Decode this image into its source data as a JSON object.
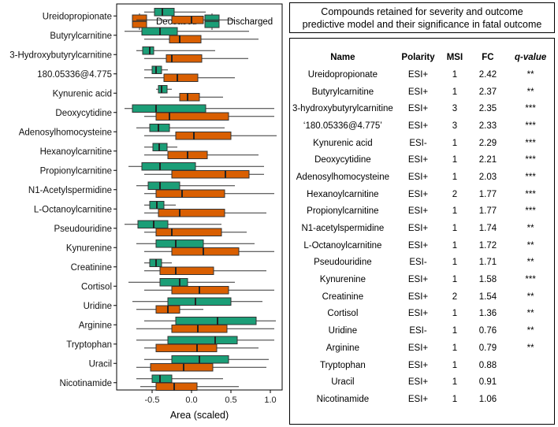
{
  "chart_data": {
    "type": "boxplot",
    "orientation": "horizontal",
    "xlabel": "Area (scaled)",
    "xlim": [
      -0.95,
      1.15
    ],
    "xticks": [
      -0.5,
      0.0,
      0.5,
      1.0
    ],
    "xtick_labels": [
      "-0.5",
      "0.0",
      "0.5",
      "1.0"
    ],
    "legend": {
      "position": "top",
      "entries": [
        {
          "name": "Deceased",
          "color": "#D95F02"
        },
        {
          "name": "Discharged",
          "color": "#1B9E77"
        }
      ]
    },
    "categories": [
      "Ureidopropionate",
      "Butyrylcarnitine",
      "3-Hydroxybutyrylcarnitine",
      "180.05336@4.775",
      "Kynurenic acid",
      "Deoxycytidine",
      "Adenosylhomocysteine",
      "Hexanoylcarnitine",
      "Propionylcarnitine",
      "N1-Acetylspermidine",
      "L-Octanoylcarnitine",
      "Pseudouridine",
      "Kynurenine",
      "Creatinine",
      "Cortisol",
      "Uridine",
      "Arginine",
      "Tryptophan",
      "Uracil",
      "Nicotinamide"
    ],
    "series": [
      {
        "name": "Discharged",
        "color": "#1B9E77",
        "boxes": [
          {
            "wmin": -0.6,
            "q1": -0.47,
            "median": -0.37,
            "q3": -0.22,
            "wmax": 0.18
          },
          {
            "wmin": -0.85,
            "q1": -0.63,
            "median": -0.4,
            "q3": -0.18,
            "wmax": 0.73
          },
          {
            "wmin": -0.7,
            "q1": -0.62,
            "median": -0.53,
            "q3": -0.48,
            "wmax": 0.3
          },
          {
            "wmin": -0.6,
            "q1": -0.5,
            "median": -0.45,
            "q3": -0.38,
            "wmax": -0.3
          },
          {
            "wmin": -0.45,
            "q1": -0.42,
            "median": -0.38,
            "q3": -0.31,
            "wmax": -0.25
          },
          {
            "wmin": -0.85,
            "q1": -0.75,
            "median": -0.45,
            "q3": 0.18,
            "wmax": 1.05
          },
          {
            "wmin": -0.7,
            "q1": -0.53,
            "median": -0.42,
            "q3": -0.28,
            "wmax": 0.42
          },
          {
            "wmin": -0.6,
            "q1": -0.49,
            "median": -0.41,
            "q3": -0.31,
            "wmax": -0.18
          },
          {
            "wmin": -0.8,
            "q1": -0.63,
            "median": -0.4,
            "q3": 0.05,
            "wmax": 0.92
          },
          {
            "wmin": -0.7,
            "q1": -0.55,
            "median": -0.4,
            "q3": -0.15,
            "wmax": 0.55
          },
          {
            "wmin": -0.6,
            "q1": -0.53,
            "median": -0.44,
            "q3": -0.35,
            "wmax": -0.2
          },
          {
            "wmin": -0.85,
            "q1": -0.68,
            "median": -0.48,
            "q3": -0.3,
            "wmax": 0.38
          },
          {
            "wmin": -0.7,
            "q1": -0.45,
            "median": -0.2,
            "q3": 0.15,
            "wmax": 0.8
          },
          {
            "wmin": -0.6,
            "q1": -0.53,
            "median": -0.45,
            "q3": -0.38,
            "wmax": -0.25
          },
          {
            "wmin": -0.8,
            "q1": -0.4,
            "median": -0.15,
            "q3": -0.05,
            "wmax": 0.55
          },
          {
            "wmin": -0.75,
            "q1": -0.3,
            "median": 0.05,
            "q3": 0.5,
            "wmax": 0.9
          },
          {
            "wmin": -0.6,
            "q1": -0.2,
            "median": 0.33,
            "q3": 0.82,
            "wmax": 1.07
          },
          {
            "wmin": -0.7,
            "q1": -0.3,
            "median": 0.3,
            "q3": 0.58,
            "wmax": 1.05
          },
          {
            "wmin": -0.6,
            "q1": -0.25,
            "median": 0.1,
            "q3": 0.47,
            "wmax": 0.98
          },
          {
            "wmin": -0.7,
            "q1": -0.5,
            "median": -0.4,
            "q3": -0.25,
            "wmax": 0.4
          }
        ]
      },
      {
        "name": "Deceased",
        "color": "#D95F02",
        "boxes": [
          {
            "wmin": -0.7,
            "q1": -0.25,
            "median": 0.0,
            "q3": 0.15,
            "wmax": 0.55
          },
          {
            "wmin": -0.6,
            "q1": -0.28,
            "median": -0.15,
            "q3": 0.12,
            "wmax": 0.85
          },
          {
            "wmin": -0.6,
            "q1": -0.32,
            "median": -0.25,
            "q3": 0.13,
            "wmax": 0.72
          },
          {
            "wmin": -0.6,
            "q1": -0.35,
            "median": -0.18,
            "q3": 0.08,
            "wmax": 0.55
          },
          {
            "wmin": -0.4,
            "q1": -0.15,
            "median": -0.05,
            "q3": 0.1,
            "wmax": 0.4
          },
          {
            "wmin": -0.6,
            "q1": -0.45,
            "median": -0.28,
            "q3": 0.47,
            "wmax": 1.05
          },
          {
            "wmin": -0.6,
            "q1": -0.2,
            "median": 0.03,
            "q3": 0.5,
            "wmax": 1.08
          },
          {
            "wmin": -0.6,
            "q1": -0.3,
            "median": -0.05,
            "q3": 0.2,
            "wmax": 0.85
          },
          {
            "wmin": -0.6,
            "q1": -0.25,
            "median": 0.43,
            "q3": 0.73,
            "wmax": 0.92
          },
          {
            "wmin": -0.6,
            "q1": -0.45,
            "median": -0.12,
            "q3": 0.42,
            "wmax": 1.05
          },
          {
            "wmin": -0.6,
            "q1": -0.42,
            "median": -0.15,
            "q3": 0.42,
            "wmax": 0.95
          },
          {
            "wmin": -0.6,
            "q1": -0.45,
            "median": -0.25,
            "q3": 0.38,
            "wmax": 0.7
          },
          {
            "wmin": -0.6,
            "q1": -0.25,
            "median": 0.15,
            "q3": 0.6,
            "wmax": 1.05
          },
          {
            "wmin": -0.6,
            "q1": -0.4,
            "median": -0.2,
            "q3": 0.28,
            "wmax": 0.95
          },
          {
            "wmin": -0.6,
            "q1": -0.25,
            "median": 0.1,
            "q3": 0.47,
            "wmax": 1.05
          },
          {
            "wmin": -0.7,
            "q1": -0.45,
            "median": -0.3,
            "q3": -0.15,
            "wmax": 0.15
          },
          {
            "wmin": -0.7,
            "q1": -0.25,
            "median": 0.08,
            "q3": 0.45,
            "wmax": 1.05
          },
          {
            "wmin": -0.6,
            "q1": -0.45,
            "median": 0.07,
            "q3": 0.32,
            "wmax": 0.85
          },
          {
            "wmin": -0.7,
            "q1": -0.52,
            "median": -0.1,
            "q3": 0.27,
            "wmax": 0.95
          },
          {
            "wmin": -0.65,
            "q1": -0.45,
            "median": -0.22,
            "q3": 0.07,
            "wmax": 0.6
          }
        ]
      }
    ]
  },
  "table": {
    "title_line1": "Compounds retained for severity and outcome",
    "title_line2": "predictive model and their significance in fatal outcome",
    "headers": [
      "Name",
      "Polarity",
      "MSI",
      "FC",
      "q-value"
    ],
    "rows": [
      [
        "Ureidopropionate",
        "ESI+",
        "1",
        "2.42",
        "**"
      ],
      [
        "Butyrylcarnitine",
        "ESI+",
        "1",
        "2.37",
        "**"
      ],
      [
        "3-hydroxybutyrylcarnitine",
        "ESI+",
        "3",
        "2.35",
        "***"
      ],
      [
        "‘180.05336@4.775’",
        "ESI+",
        "3",
        "2.33",
        "***"
      ],
      [
        "Kynurenic acid",
        "ESI-",
        "1",
        "2.29",
        "***"
      ],
      [
        "Deoxycytidine",
        "ESI+",
        "1",
        "2.21",
        "***"
      ],
      [
        "Adenosylhomocysteine",
        "ESI+",
        "1",
        "2.03",
        "***"
      ],
      [
        "Hexanoylcarnitine",
        "ESI+",
        "2",
        "1.77",
        "***"
      ],
      [
        "Propionylcarnitine",
        "ESI+",
        "1",
        "1.77",
        "***"
      ],
      [
        "N1-acetylspermidine",
        "ESI+",
        "1",
        "1.74",
        "**"
      ],
      [
        "L-Octanoylcarnitine",
        "ESI+",
        "1",
        "1.72",
        "**"
      ],
      [
        "Pseudouridine",
        "ESI-",
        "1",
        "1.71",
        "**"
      ],
      [
        "Kynurenine",
        "ESI+",
        "1",
        "1.58",
        "***"
      ],
      [
        "Creatinine",
        "ESI+",
        "2",
        "1.54",
        "**"
      ],
      [
        "Cortisol",
        "ESI+",
        "1",
        "1.36",
        "**"
      ],
      [
        "Uridine",
        "ESI-",
        "1",
        "0.76",
        "**"
      ],
      [
        "Arginine",
        "ESI+",
        "1",
        "0.79",
        "**"
      ],
      [
        "Tryptophan",
        "ESI+",
        "1",
        "0.88",
        ""
      ],
      [
        "Uracil",
        "ESI+",
        "1",
        "0.91",
        ""
      ],
      [
        "Nicotinamide",
        "ESI+",
        "1",
        "1.06",
        ""
      ]
    ]
  }
}
